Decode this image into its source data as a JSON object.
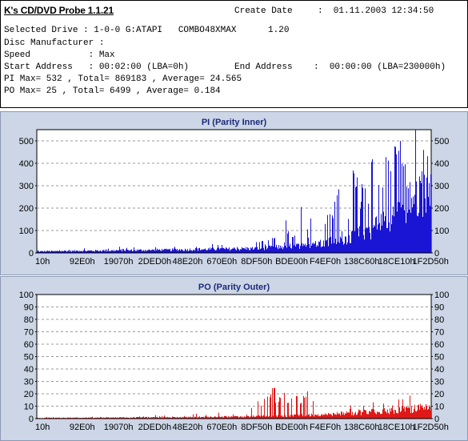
{
  "app": {
    "title": "K's CD/DVD Probe 1.1.21"
  },
  "info": {
    "create_date_label": "Create Date",
    "create_date_value": ":  01.11.2003 12:34:50",
    "selected_drive": "Selected Drive : 1-0-0 G:ATAPI   COMBO48XMAX      1.20",
    "disc_manufacturer": "Disc Manufacturer :",
    "speed": "Speed           : Max",
    "start_address": "Start Address   : 00:02:00 (LBA=0h)",
    "end_address": "End Address    :  00:00:00 (LBA=230000h)",
    "pi_summary": "PI Max= 532 , Total= 869183 , Average= 24.565",
    "po_summary": "PO Max= 25 , Total= 6499 , Average= 0.184"
  },
  "colors": {
    "pi_bar": "#1a14d4",
    "po_bar": "#e01818",
    "panel_bg": "#ccd6e6",
    "title": "#1c2a7a"
  },
  "chart_data": [
    {
      "type": "bar",
      "title": "PI (Parity Inner)",
      "ylim": [
        0,
        550
      ],
      "yticks": [
        0,
        100,
        200,
        300,
        400,
        500
      ],
      "x_tick_labels": [
        "10h",
        "92E0h",
        "19070h",
        "2DED0h",
        "48E20h",
        "670E0h",
        "8DF50h",
        "BDE00h",
        "F4EF0h",
        "138C60h",
        "18CE10h",
        "1F2D50h"
      ],
      "grid": true,
      "series": [
        {
          "values": [
            6,
            7,
            8,
            7,
            8,
            9,
            8,
            9,
            10,
            9,
            10,
            10,
            11,
            10,
            11,
            12,
            11,
            12,
            12,
            13,
            12,
            13,
            14,
            13,
            14,
            15,
            14,
            15,
            16,
            15,
            16,
            17,
            16,
            18,
            17,
            19,
            18,
            20,
            19,
            21,
            22,
            23,
            24,
            26,
            27,
            29,
            31,
            33,
            36,
            39,
            42,
            46,
            50,
            55,
            60,
            66,
            73,
            81,
            90,
            100,
            112,
            125,
            140,
            158,
            178,
            200,
            225,
            250,
            275,
            300,
            330
          ],
          "peaks": [
            [
              46,
              40
            ],
            [
              57,
              55
            ],
            [
              60,
              70
            ],
            [
              63,
              150
            ],
            [
              64,
              100
            ],
            [
              65,
              80
            ],
            [
              67,
              230
            ],
            [
              68,
              280
            ],
            [
              69,
              120
            ],
            [
              70,
              180
            ],
            [
              73,
              140
            ],
            [
              74,
              190
            ],
            [
              75,
              170
            ],
            [
              76,
              260
            ],
            [
              77,
              300
            ],
            [
              79,
              170
            ],
            [
              80,
              370
            ],
            [
              81,
              340
            ],
            [
              82,
              230
            ],
            [
              83,
              310
            ],
            [
              84,
              240
            ],
            [
              85,
              440
            ],
            [
              86,
              532
            ],
            [
              87,
              330
            ],
            [
              88,
              300
            ],
            [
              89,
              450
            ],
            [
              90,
              380
            ],
            [
              91,
              480
            ],
            [
              92,
              510
            ],
            [
              93,
              400
            ]
          ]
        }
      ]
    },
    {
      "type": "bar",
      "title": "PO (Parity Outer)",
      "ylim": [
        0,
        100
      ],
      "yticks": [
        0,
        10,
        20,
        30,
        40,
        50,
        60,
        70,
        80,
        90,
        100
      ],
      "x_tick_labels": [
        "10h",
        "92E0h",
        "19070h",
        "2DED0h",
        "48E20h",
        "670E0h",
        "8DF50h",
        "BDE00h",
        "F4EF0h",
        "138C60h",
        "18CE10h",
        "1F2D50h"
      ],
      "grid": true,
      "series": [
        {
          "values": [
            0.5,
            0.5,
            0.6,
            0.6,
            0.7,
            0.7,
            0.6,
            0.7,
            0.8,
            0.7,
            0.8,
            0.8,
            0.8,
            0.9,
            0.8,
            0.9,
            0.9,
            1,
            1,
            1,
            1,
            1.1,
            1.1,
            1.2,
            1.2,
            1.3,
            1.3,
            1.4,
            1.4,
            1.5,
            1.5,
            1.6,
            1.7,
            1.8,
            1.9,
            2,
            2.1,
            2.2,
            2.3,
            2.4,
            2.5,
            2.7,
            2.9,
            3.1,
            3.3,
            3.5,
            3.8,
            4.1,
            4.4,
            4.7,
            5,
            5.4,
            5.8,
            6.2,
            6.6,
            7,
            7.4,
            7.8,
            8.2,
            8.6,
            9
          ],
          "peaks": [
            [
              30,
              3
            ],
            [
              40,
              4
            ],
            [
              46,
              5
            ],
            [
              52,
              9
            ],
            [
              54,
              10
            ],
            [
              56,
              14
            ],
            [
              57,
              12
            ],
            [
              58,
              16
            ],
            [
              59,
              20
            ],
            [
              60,
              25
            ],
            [
              61,
              15
            ],
            [
              62,
              18
            ],
            [
              63,
              22
            ],
            [
              64,
              14
            ],
            [
              65,
              17
            ],
            [
              66,
              21
            ],
            [
              67,
              13
            ],
            [
              68,
              19
            ],
            [
              69,
              24
            ],
            [
              70,
              16
            ]
          ]
        }
      ]
    }
  ]
}
